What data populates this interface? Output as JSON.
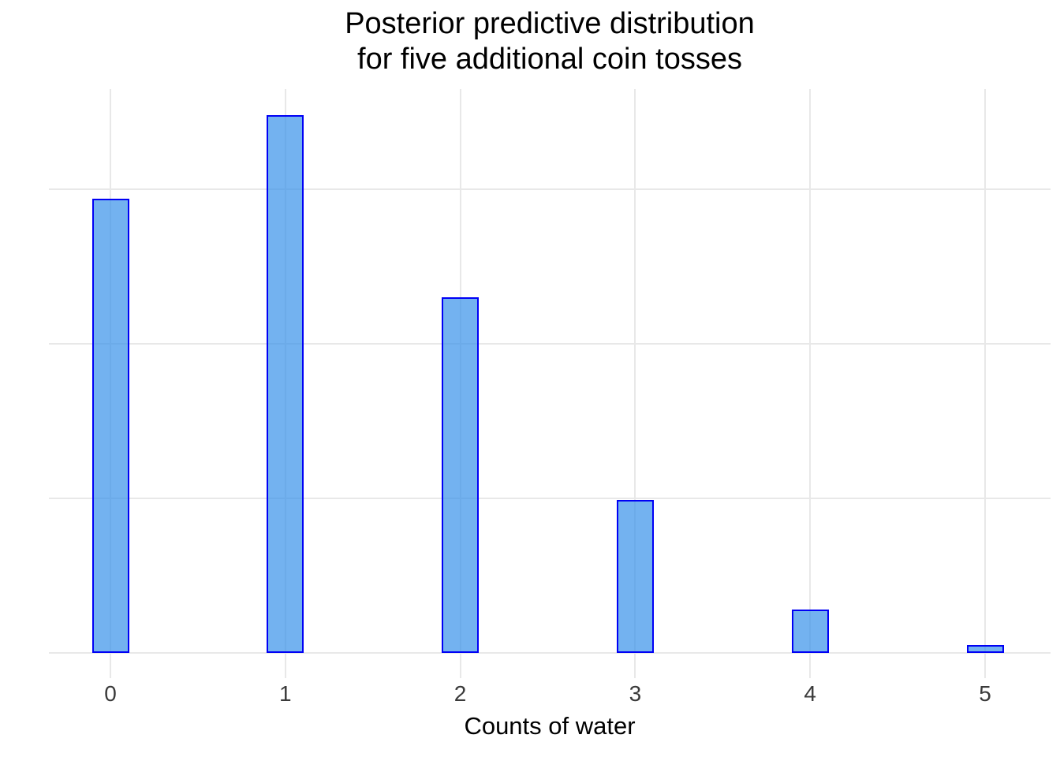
{
  "chart_data": {
    "type": "bar",
    "title_lines": [
      "Posterior predictive distribution",
      "for five additional coin tosses"
    ],
    "xlabel": "Counts of water",
    "categories": [
      "0",
      "1",
      "2",
      "3",
      "4",
      "5"
    ],
    "values": [
      0.294,
      0.348,
      0.23,
      0.099,
      0.028,
      0.005
    ],
    "ylim": [
      0,
      0.365
    ],
    "gridlines_y": [
      0,
      0.1,
      0.2,
      0.3
    ],
    "y_axis_labels": "none",
    "legend": "none",
    "grid": "major-only",
    "colors": {
      "bar_fill": "#74B2EE",
      "bar_fill_rgba": "rgba(55,145,234,0.70)",
      "bar_border": "#0000F5",
      "gridline": "#E8E8E8",
      "tick_label": "#3A3A3A",
      "title": "#000000",
      "background": "#FFFFFF"
    }
  }
}
